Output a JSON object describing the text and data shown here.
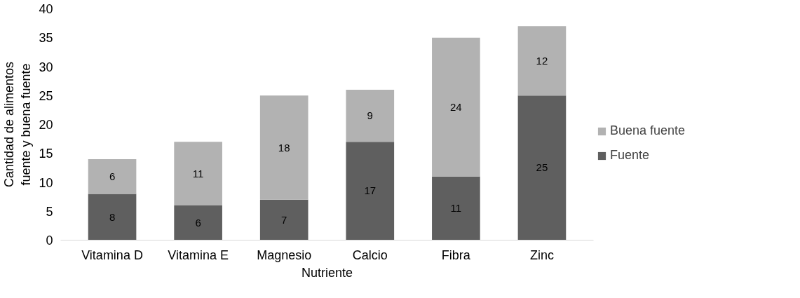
{
  "chart_data": {
    "type": "bar",
    "stacked": true,
    "xlabel": "Nutriente",
    "ylabel": "Cantidad de alimentos\nfuente y buena fuente",
    "categories": [
      "Vitamina D",
      "Vitamina E",
      "Magnesio",
      "Calcio",
      "Fibra",
      "Zinc"
    ],
    "series": [
      {
        "name": "Fuente",
        "color": "#5f5f5f",
        "values": [
          8,
          6,
          7,
          17,
          11,
          25
        ]
      },
      {
        "name": "Buena fuente",
        "color": "#b2b2b2",
        "values": [
          6,
          11,
          18,
          9,
          24,
          12
        ]
      }
    ],
    "ylim": [
      0,
      40
    ],
    "yticks": [
      0,
      5,
      10,
      15,
      20,
      25,
      30,
      35,
      40
    ],
    "grid": false,
    "legend": "right",
    "data_labels": true
  }
}
